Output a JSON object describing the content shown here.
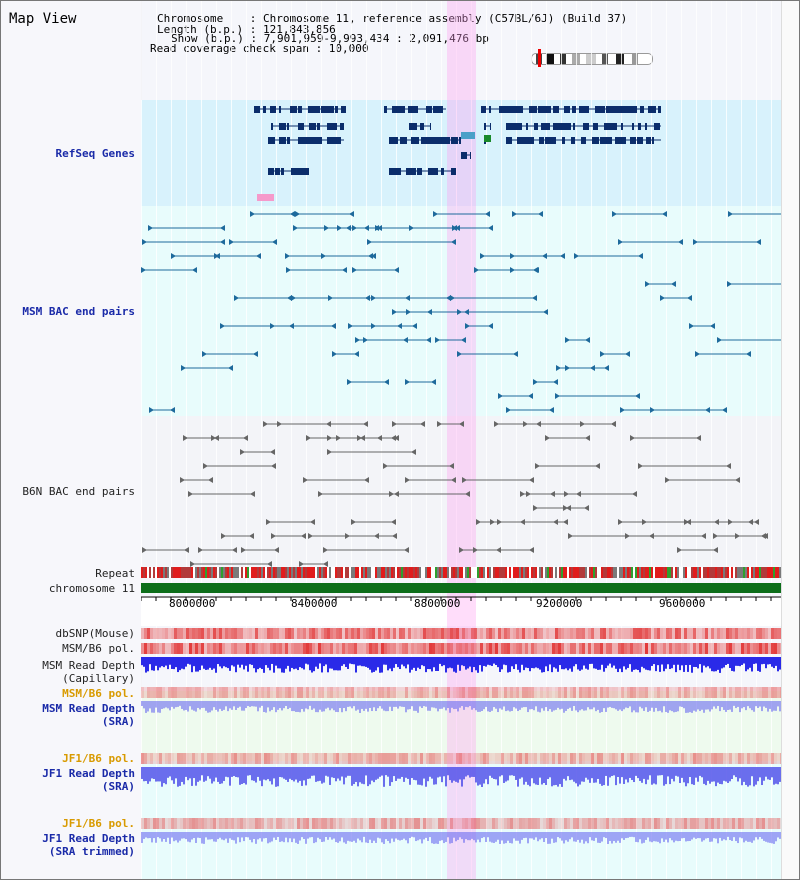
{
  "title": "Map View",
  "header": {
    "chromosome_line": "Chromosome    : Chromosome 11, reference assembly (C57BL/6J) (Build 37)",
    "length_line": "Length (b.p.) : 121,843,856",
    "show_line": "Show (b.p.) : 7,901,959-9,993,434 : 2,091,476 bp",
    "span_line": "Read coverage check span : 10,000"
  },
  "tracks": {
    "refseq": "RefSeq Genes",
    "msm_bac": "MSM BAC end pairs",
    "b6n_bac": "B6N BAC end pairs",
    "repeat": "Repeat",
    "chromosome": "chromosome 11",
    "dbsnp": "dbSNP(Mouse)",
    "msm_b6_pol": "MSM/B6 pol.",
    "msm_read_depth_cap": "MSM Read Depth\n(Capillary)",
    "msm_b6_pol2": "MSM/B6 pol.",
    "msm_read_depth_sra": "MSM Read Depth\n(SRA)",
    "jf1_b6_pol": "JF1/B6 pol.",
    "jf1_read_depth_sra": "JF1 Read Depth\n(SRA)",
    "jf1_b6_pol2": "JF1/B6 pol.",
    "jf1_read_depth_trim": "JF1 Read Depth\n(SRA trimmed)"
  },
  "axis_ticks": [
    "8000000",
    "8400000",
    "8800000",
    "9200000",
    "9600000"
  ],
  "colors": {
    "refseq_bg": "#d8f2fc",
    "msm_bg": "#e8fcfc",
    "b6n_bg": "#f3f4f8",
    "gene": "#0b2d6b",
    "bac_msm": "#1e6a9c",
    "bac_b6n": "#666666",
    "highlight": "#ff9ff0",
    "chromosome": "#0d6e1a",
    "snp": "#e23a3a",
    "depth": "#2a2ae8"
  }
}
